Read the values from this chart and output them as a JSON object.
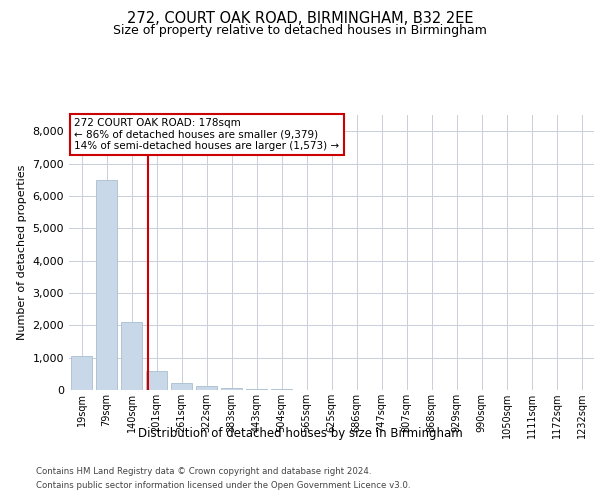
{
  "title1": "272, COURT OAK ROAD, BIRMINGHAM, B32 2EE",
  "title2": "Size of property relative to detached houses in Birmingham",
  "xlabel": "Distribution of detached houses by size in Birmingham",
  "ylabel": "Number of detached properties",
  "footer1": "Contains HM Land Registry data © Crown copyright and database right 2024.",
  "footer2": "Contains public sector information licensed under the Open Government Licence v3.0.",
  "annotation_line1": "272 COURT OAK ROAD: 178sqm",
  "annotation_line2": "← 86% of detached houses are smaller (9,379)",
  "annotation_line3": "14% of semi-detached houses are larger (1,573) →",
  "bar_color": "#c8d8e8",
  "bar_edge_color": "#a8bece",
  "vline_color": "#cc0000",
  "annotation_box_edgecolor": "#cc0000",
  "background_color": "#ffffff",
  "grid_color": "#c8cfd8",
  "categories": [
    "19sqm",
    "79sqm",
    "140sqm",
    "201sqm",
    "261sqm",
    "322sqm",
    "383sqm",
    "443sqm",
    "504sqm",
    "565sqm",
    "625sqm",
    "686sqm",
    "747sqm",
    "807sqm",
    "868sqm",
    "929sqm",
    "990sqm",
    "1050sqm",
    "1111sqm",
    "1172sqm",
    "1232sqm"
  ],
  "values": [
    1050,
    6500,
    2100,
    600,
    230,
    130,
    70,
    35,
    18,
    8,
    3,
    0,
    0,
    0,
    0,
    0,
    0,
    0,
    0,
    0,
    0
  ],
  "ylim": [
    0,
    8500
  ],
  "yticks": [
    0,
    1000,
    2000,
    3000,
    4000,
    5000,
    6000,
    7000,
    8000
  ],
  "vline_x": 2.65,
  "figsize": [
    6.0,
    5.0
  ],
  "dpi": 100
}
